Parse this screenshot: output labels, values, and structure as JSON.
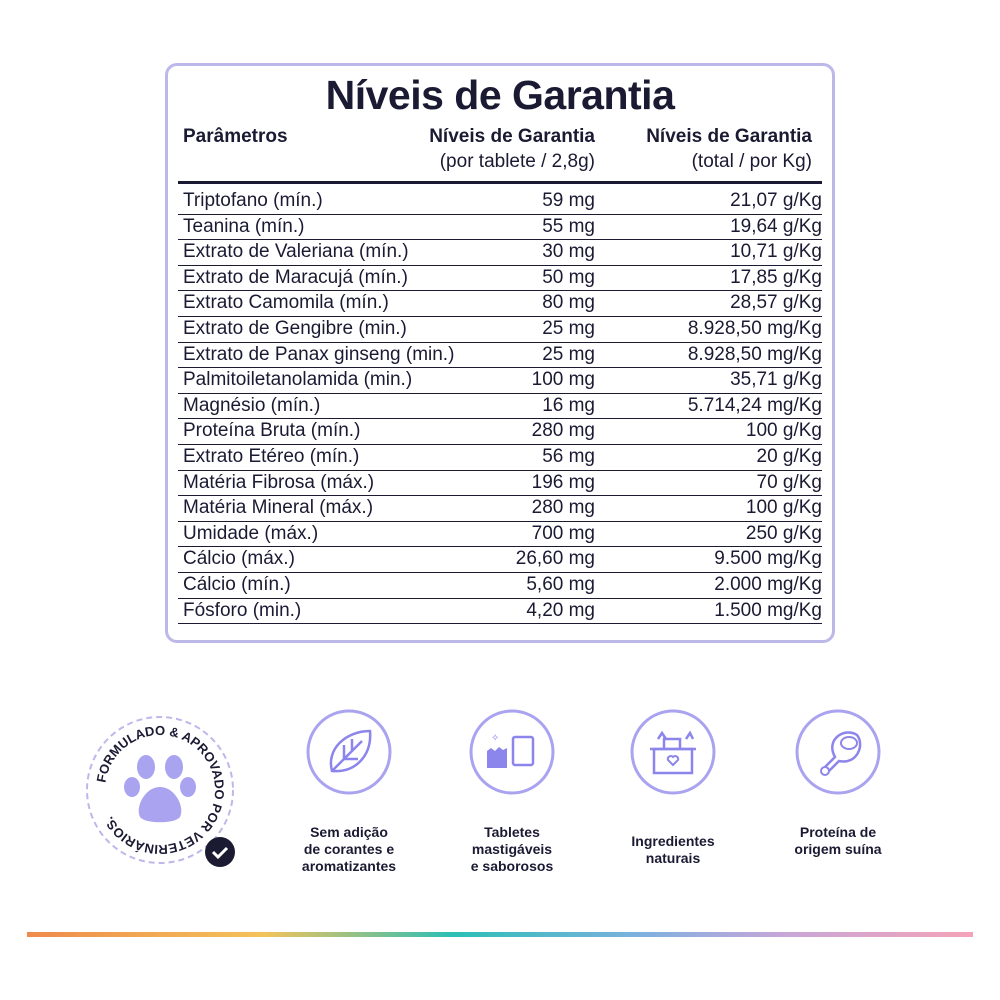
{
  "title": "Níveis de Garantia",
  "headers": {
    "param": "Parâmetros",
    "col2": "Níveis de Garantia",
    "col2_sub": "(por tablete / 2,8g)",
    "col3": "Níveis de Garantia",
    "col3_sub": "(total / por Kg)"
  },
  "rows": [
    [
      "Triptofano (mín.)",
      "59 mg",
      "21,07 g/Kg"
    ],
    [
      "Teanina (mín.)",
      "55 mg",
      "19,64 g/Kg"
    ],
    [
      "Extrato de Valeriana (mín.)",
      "30 mg",
      "10,71 g/Kg"
    ],
    [
      "Extrato de Maracujá (mín.)",
      "50 mg",
      "17,85 g/Kg"
    ],
    [
      "Extrato Camomila (mín.)",
      "80 mg",
      "28,57 g/Kg"
    ],
    [
      "Extrato de Gengibre (min.)",
      "25 mg",
      "8.928,50 mg/Kg"
    ],
    [
      "Extrato de Panax ginseng (min.)",
      "25 mg",
      "8.928,50 mg/Kg"
    ],
    [
      "Palmitoiletanolamida (min.)",
      "100 mg",
      "35,71 g/Kg"
    ],
    [
      "Magnésio (mín.)",
      "16 mg",
      "5.714,24 mg/Kg"
    ],
    [
      "Proteína Bruta (mín.)",
      "280 mg",
      "100 g/Kg"
    ],
    [
      "Extrato Etéreo (mín.)",
      "56 mg",
      "20 g/Kg"
    ],
    [
      "Matéria Fibrosa (máx.)",
      "196 mg",
      "70 g/Kg"
    ],
    [
      "Matéria Mineral (máx.)",
      "280 mg",
      "100 g/Kg"
    ],
    [
      "Umidade (máx.)",
      "700 mg",
      "250 g/Kg"
    ],
    [
      "Cálcio (máx.)",
      "26,60 mg",
      "9.500 mg/Kg"
    ],
    [
      "Cálcio (mín.)",
      "5,60 mg",
      "2.000 mg/Kg"
    ],
    [
      "Fósforo (min.)",
      "4,20 mg",
      "1.500 mg/Kg"
    ]
  ],
  "badge": {
    "text": "FORMULADO & APROVADO POR VETERINÁRIOS."
  },
  "features": [
    {
      "icon": "leaf-icon",
      "lines": [
        "Sem adição",
        "de corantes e",
        "aromatizantes"
      ]
    },
    {
      "icon": "tablets-icon",
      "lines": [
        "Tabletes",
        "mastigáveis",
        "e saborosos"
      ]
    },
    {
      "icon": "ingredients-box-icon",
      "lines": [
        "Ingredientes",
        "naturais"
      ]
    },
    {
      "icon": "ham-icon",
      "lines": [
        "Proteína de",
        "origem suína"
      ]
    }
  ],
  "colors": {
    "accent": "#8c85ec",
    "border": "#bdb8ea",
    "text": "#1b1a33"
  }
}
